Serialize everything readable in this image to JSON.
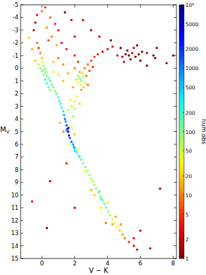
{
  "chart_data": {
    "type": "scatter",
    "x_label": "V − K",
    "y_label": "MV",
    "xlim": [
      -1.3,
      8.2
    ],
    "ylim": [
      15,
      -5
    ],
    "xticks": [
      0,
      2,
      4,
      6,
      8
    ],
    "yticks": [
      -5,
      -4,
      -3,
      -2,
      -1,
      0,
      1,
      2,
      3,
      4,
      5,
      6,
      7,
      8,
      9,
      10,
      11,
      12,
      13,
      14,
      15
    ],
    "log": "color",
    "colorbar": {
      "label": "num.obs",
      "lim": [
        1,
        10000
      ],
      "ticks": [
        1,
        2,
        5,
        10,
        20,
        50,
        100,
        200,
        500,
        1000,
        2000,
        5000,
        {
          "value": 10000,
          "label": "10⁴"
        }
      ]
    },
    "x": [
      1.45,
      1.5,
      1.55,
      1.6,
      1.65,
      1.7,
      1.5,
      1.62,
      1.4,
      1.35,
      1.3,
      1.2,
      1.15,
      1.05,
      1.0,
      0.9,
      0.8,
      0.7,
      0.6,
      0.5,
      0.4,
      0.3,
      0.25,
      0.15,
      0.1,
      0.05,
      0.0,
      -0.1,
      -0.2,
      -0.3,
      0.2,
      0.3,
      0.4,
      0.5,
      0.1,
      0.2,
      0.0,
      -0.1,
      -0.2,
      -0.4,
      1.8,
      1.9,
      2.0,
      2.1,
      2.25,
      2.4,
      2.5,
      2.65,
      2.8,
      2.9,
      3.0,
      3.1,
      3.2,
      3.3,
      3.45,
      3.55,
      3.7,
      3.8,
      3.9,
      4.05,
      4.15,
      4.3,
      4.45,
      4.6,
      4.75,
      4.9,
      5.05,
      5.3,
      5.6,
      5.8,
      3.5,
      3.6,
      2.3,
      2.0,
      1.95,
      2.2,
      1.7,
      3.6,
      3.2,
      4.0,
      4.3,
      2.6,
      3.9,
      4.8,
      3.0,
      4.5,
      1.8,
      2.0,
      1.1,
      1.3,
      1.9,
      2.0,
      1.8,
      2.0,
      1.7,
      2.1,
      2.3,
      1.6,
      2.3,
      2.4,
      2.2,
      2.5,
      2.35,
      2.2,
      2.6,
      2.45,
      2.1,
      2.3,
      2.7,
      2.55,
      2.4,
      2.6,
      2.8,
      3.0,
      3.2,
      3.4,
      3.7,
      4.0,
      4.3,
      2.9,
      3.1,
      2.0,
      2.2,
      2.0,
      1.9,
      2.8,
      4.6,
      4.9,
      5.1,
      5.3,
      5.5,
      5.7,
      5.9,
      5.2,
      5.6,
      6.1,
      6.4,
      6.9,
      5.0,
      5.4,
      6.0,
      4.8,
      5.8,
      7.6,
      6.8,
      3.5,
      4.2,
      3.0,
      2.5,
      0.0,
      0.2,
      -0.3,
      0.5,
      0.8,
      1.0,
      0.3,
      -0.5,
      0.6,
      1.2,
      1.5,
      0.9,
      0.4,
      1.8,
      -0.8,
      -0.6,
      -0.4,
      1.4,
      2.0,
      0.7,
      1.0,
      1.3,
      1.6,
      1.0,
      0.7,
      1.3,
      -0.6,
      0.5,
      1.5,
      0.3,
      6.6,
      8.0,
      6.4,
      7.0,
      2.0,
      5.6,
      6.0,
      7.2
    ],
    "values": [
      4.2,
      4.5,
      4.8,
      5.0,
      5.3,
      5.5,
      4.9,
      4.7,
      4.0,
      3.7,
      3.4,
      3.1,
      2.8,
      2.6,
      2.3,
      2.0,
      1.8,
      1.5,
      1.3,
      1.0,
      0.8,
      0.6,
      0.3,
      0.1,
      -0.2,
      -0.5,
      -0.8,
      -1.2,
      -1.6,
      -2.0,
      0.9,
      1.2,
      1.5,
      1.7,
      0.5,
      0.0,
      0.2,
      0.0,
      -0.3,
      -0.6,
      5.8,
      6.0,
      6.3,
      6.6,
      6.9,
      7.2,
      7.5,
      7.8,
      8.1,
      8.4,
      8.7,
      8.9,
      9.2,
      9.5,
      9.8,
      10.1,
      10.4,
      10.7,
      11.0,
      11.3,
      11.6,
      11.9,
      12.2,
      12.5,
      12.8,
      13.1,
      13.4,
      13.7,
      14.0,
      14.3,
      9.7,
      10.3,
      7.0,
      6.5,
      6.2,
      6.4,
      6.0,
      11.0,
      10.0,
      10.6,
      12.3,
      8.1,
      12.2,
      12.3,
      9.6,
      11.7,
      4.6,
      5.2,
      4.3,
      5.0,
      3.8,
      3.2,
      3.0,
      2.6,
      2.5,
      2.2,
      2.8,
      3.3,
      0.8,
      1.0,
      0.6,
      0.7,
      1.3,
      1.1,
      1.1,
      0.4,
      0.9,
      0.3,
      0.6,
      1.5,
      1.7,
      0.0,
      -0.3,
      -0.6,
      -0.9,
      -1.1,
      -1.3,
      -1.5,
      -1.7,
      0.2,
      -0.1,
      0.0,
      -0.5,
      -1.0,
      1.5,
      1.3,
      -1.0,
      -0.9,
      -1.1,
      -1.0,
      -1.2,
      -0.9,
      -1.1,
      -1.4,
      -1.6,
      -1.3,
      -1.2,
      -0.8,
      -0.5,
      -0.7,
      -0.6,
      -1.6,
      -1.8,
      -0.4,
      -1.0,
      -2.5,
      -2.2,
      -3.0,
      -3.8,
      -4.5,
      -4.8,
      -4.2,
      -4.0,
      -3.5,
      -3.0,
      -3.2,
      -3.0,
      -2.5,
      -2.0,
      -1.5,
      -1.8,
      -2.2,
      -3.8,
      -2.4,
      -1.5,
      -3.6,
      -4.4,
      -2.5,
      -0.5,
      -0.8,
      -0.3,
      0.4,
      0.5,
      0.3,
      1.0,
      10.5,
      8.9,
      7.5,
      12.6,
      14.2,
      -1.0,
      -0.2,
      -1.6,
      11.0,
      13.4,
      12.8,
      9.5
    ],
    "num_obs": [
      800,
      1500,
      3000,
      5000,
      2000,
      1500,
      800,
      2500,
      1000,
      600,
      400,
      300,
      250,
      200,
      150,
      120,
      100,
      120,
      150,
      200,
      150,
      120,
      100,
      80,
      60,
      40,
      20,
      10,
      5,
      8,
      300,
      200,
      150,
      100,
      90,
      70,
      150,
      100,
      50,
      20,
      1200,
      800,
      500,
      300,
      200,
      150,
      120,
      100,
      90,
      80,
      70,
      60,
      70,
      80,
      90,
      100,
      120,
      150,
      100,
      80,
      60,
      50,
      40,
      30,
      20,
      15,
      10,
      5,
      3,
      2,
      200,
      150,
      300,
      400,
      700,
      40,
      50,
      30,
      20,
      25,
      15,
      30,
      8,
      10,
      15,
      12,
      30,
      20,
      15,
      10,
      100,
      80,
      60,
      50,
      40,
      30,
      20,
      70,
      150,
      120,
      80,
      60,
      50,
      40,
      30,
      25,
      20,
      15,
      10,
      20,
      12,
      10,
      8,
      6,
      5,
      4,
      3,
      3,
      2,
      5,
      4,
      10,
      5,
      4,
      15,
      8,
      3,
      2,
      1,
      1,
      2,
      1,
      1,
      1,
      2,
      1,
      1,
      1,
      2,
      1,
      1,
      1,
      1,
      1,
      1,
      2,
      1,
      1,
      2,
      10,
      5,
      3,
      8,
      4,
      3,
      12,
      2,
      10,
      3,
      4,
      15,
      6,
      2,
      20,
      15,
      1,
      1,
      2,
      20,
      8,
      10,
      15,
      25,
      30,
      20,
      3,
      2,
      3,
      1,
      2,
      1,
      1,
      1,
      2,
      3,
      2,
      1
    ]
  }
}
